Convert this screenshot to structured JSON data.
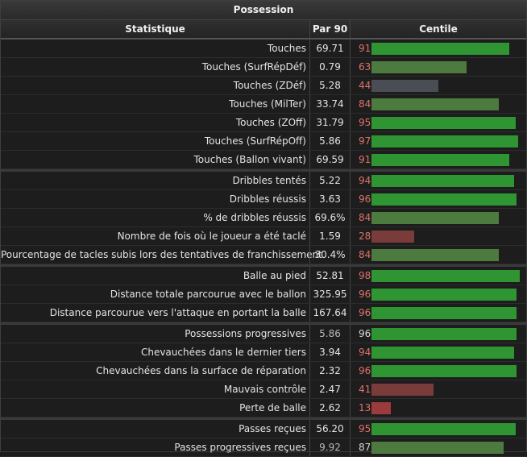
{
  "title": "Possession",
  "headers": {
    "stat": "Statistique",
    "per90": "Par 90",
    "percentile": "Centile"
  },
  "colors": {
    "bar_high": "#2f9432",
    "bar_mid": "#4d7a3f",
    "bar_neutral": "#4a4d53",
    "bar_low": "#7a3b3b",
    "bar_very_low": "#9b3b3b"
  },
  "groups": [
    {
      "rows": [
        {
          "label": "Touches",
          "per90": "69.71",
          "pct": 91,
          "pct_style": "red",
          "bar": "bar_high"
        },
        {
          "label": "Touches (SurfRépDéf)",
          "per90": "0.79",
          "pct": 63,
          "pct_style": "red",
          "bar": "bar_mid"
        },
        {
          "label": "Touches (ZDéf)",
          "per90": "5.28",
          "pct": 44,
          "pct_style": "red",
          "bar": "bar_neutral"
        },
        {
          "label": "Touches (MilTer)",
          "per90": "33.74",
          "pct": 84,
          "pct_style": "red",
          "bar": "bar_mid"
        },
        {
          "label": "Touches (ZOff)",
          "per90": "31.79",
          "pct": 95,
          "pct_style": "red",
          "bar": "bar_high"
        },
        {
          "label": "Touches (SurfRépOff)",
          "per90": "5.86",
          "pct": 97,
          "pct_style": "red",
          "bar": "bar_high"
        },
        {
          "label": "Touches (Ballon vivant)",
          "per90": "69.59",
          "pct": 91,
          "pct_style": "red",
          "bar": "bar_high"
        }
      ]
    },
    {
      "rows": [
        {
          "label": "Dribbles tentés",
          "per90": "5.22",
          "pct": 94,
          "pct_style": "red",
          "bar": "bar_high"
        },
        {
          "label": "Dribbles réussis",
          "per90": "3.63",
          "pct": 96,
          "pct_style": "red",
          "bar": "bar_high"
        },
        {
          "label": "% de dribbles réussis",
          "per90": "69.6%",
          "pct": 84,
          "pct_style": "red",
          "bar": "bar_mid"
        },
        {
          "label": "Nombre de fois où le joueur a été taclé",
          "per90": "1.59",
          "pct": 28,
          "pct_style": "red",
          "bar": "bar_low"
        },
        {
          "label": "Pourcentage de tacles subis lors des tentatives de franchissement",
          "per90": "30.4%",
          "pct": 84,
          "pct_style": "red",
          "bar": "bar_mid"
        }
      ]
    },
    {
      "rows": [
        {
          "label": "Balle au pied",
          "per90": "52.81",
          "pct": 98,
          "pct_style": "red",
          "bar": "bar_high"
        },
        {
          "label": "Distance totale parcourue avec le ballon",
          "per90": "325.95",
          "pct": 96,
          "pct_style": "red",
          "bar": "bar_high"
        },
        {
          "label": "Distance parcourue vers l'attaque en portant la balle",
          "per90": "167.64",
          "pct": 96,
          "pct_style": "red",
          "bar": "bar_high"
        }
      ]
    },
    {
      "rows": [
        {
          "label": "Possessions progressives",
          "per90": "5.86",
          "pct": 96,
          "pct_style": "plain",
          "per90_style": "muted",
          "bar": "bar_high"
        },
        {
          "label": "Chevauchées dans le dernier tiers",
          "per90": "3.94",
          "pct": 94,
          "pct_style": "red",
          "bar": "bar_high"
        },
        {
          "label": "Chevauchées dans la surface de réparation",
          "per90": "2.32",
          "pct": 96,
          "pct_style": "red",
          "bar": "bar_high"
        },
        {
          "label": "Mauvais contrôle",
          "per90": "2.47",
          "pct": 41,
          "pct_style": "red",
          "bar": "bar_low"
        },
        {
          "label": "Perte de balle",
          "per90": "2.62",
          "pct": 13,
          "pct_style": "red",
          "bar": "bar_very_low"
        }
      ]
    },
    {
      "rows": [
        {
          "label": "Passes reçues",
          "per90": "56.20",
          "pct": 95,
          "pct_style": "red",
          "bar": "bar_high"
        },
        {
          "label": "Passes progressives reçues",
          "per90": "9.92",
          "pct": 87,
          "pct_style": "plain",
          "per90_style": "muted",
          "bar": "bar_mid"
        }
      ]
    }
  ]
}
